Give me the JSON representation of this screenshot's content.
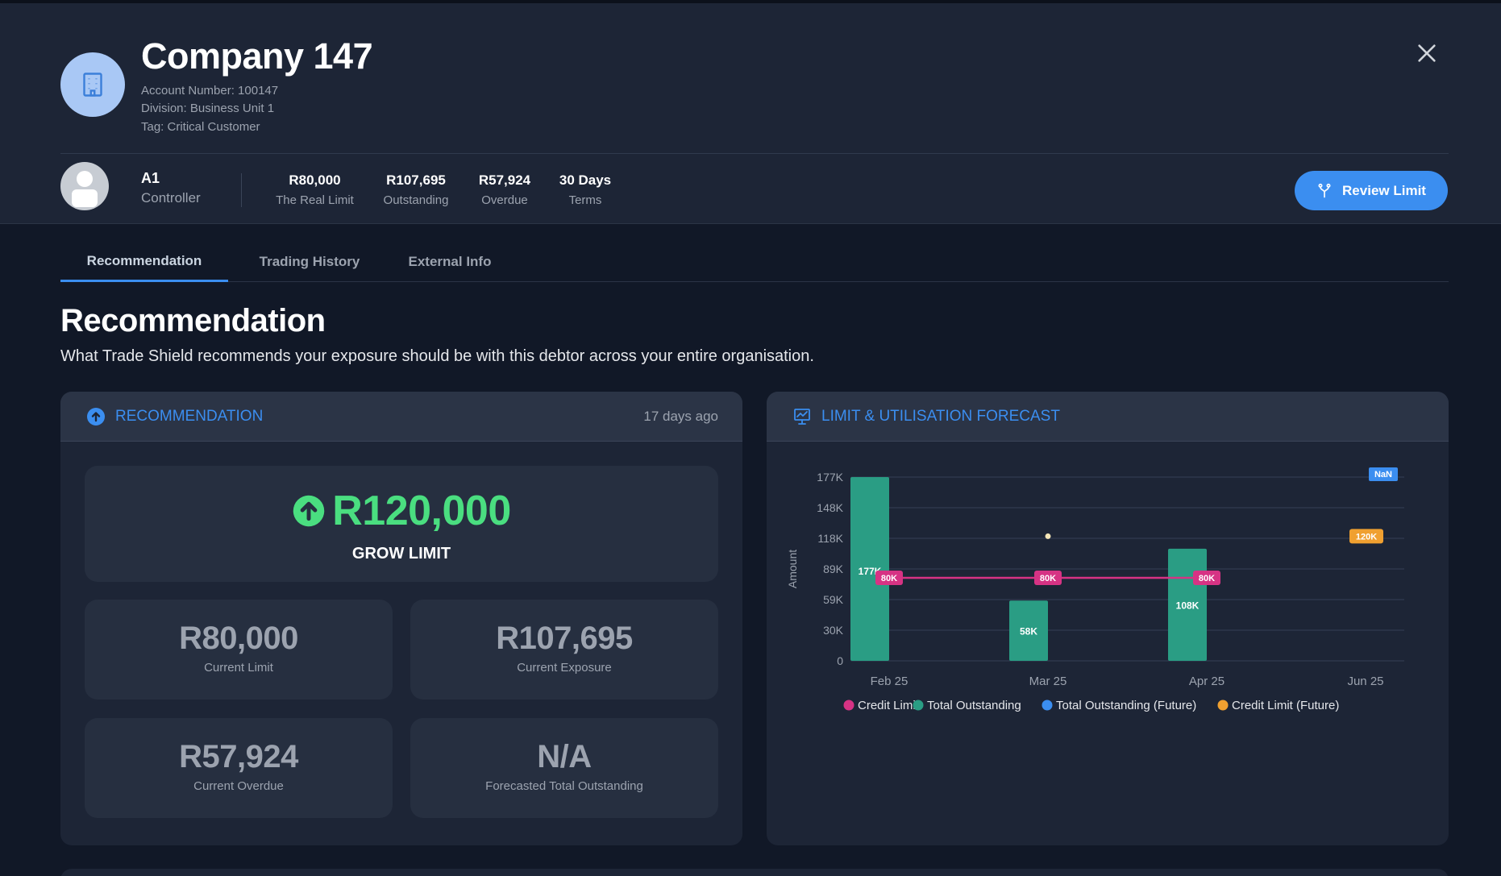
{
  "header": {
    "title": "Company 147",
    "account_number": "Account Number: 100147",
    "division": "Division: Business Unit 1",
    "tag": "Tag: Critical Customer",
    "icon": "building-icon"
  },
  "user": {
    "name": "A1",
    "role": "Controller"
  },
  "stats": [
    {
      "value": "R80,000",
      "label": "The Real Limit"
    },
    {
      "value": "R107,695",
      "label": "Outstanding"
    },
    {
      "value": "R57,924",
      "label": "Overdue"
    },
    {
      "value": "30 Days",
      "label": "Terms"
    }
  ],
  "actions": {
    "review_limit": "Review Limit"
  },
  "tabs": [
    {
      "label": "Recommendation",
      "active": true
    },
    {
      "label": "Trading History",
      "active": false
    },
    {
      "label": "External Info",
      "active": false
    }
  ],
  "section": {
    "title": "Recommendation",
    "subtitle": "What Trade Shield recommends your exposure should be with this debtor across your entire organisation."
  },
  "recommendation_card": {
    "title": "RECOMMENDATION",
    "time_ago": "17 days ago",
    "main_value": "R120,000",
    "main_label": "GROW LIMIT",
    "tiles": [
      {
        "value": "R80,000",
        "label": "Current Limit"
      },
      {
        "value": "R107,695",
        "label": "Current Exposure"
      },
      {
        "value": "R57,924",
        "label": "Current Overdue"
      },
      {
        "value": "N/A",
        "label": "Forecasted Total Outstanding"
      }
    ]
  },
  "forecast_card": {
    "title": "LIMIT & UTILISATION FORECAST"
  },
  "colors": {
    "accent": "#3b8ef0",
    "positive": "#4ade80",
    "credit_limit": "#d63384",
    "total_outstanding": "#2a9d84",
    "outstanding_future": "#3b8ef0",
    "limit_future": "#f0a030"
  },
  "chart_data": {
    "type": "bar",
    "title": "",
    "xlabel": "",
    "ylabel": "Amount",
    "categories": [
      "Feb 25",
      "Mar 25",
      "Apr 25",
      "Jun 25"
    ],
    "y_ticks": [
      "0",
      "30K",
      "59K",
      "89K",
      "118K",
      "148K",
      "177K"
    ],
    "ylim": [
      0,
      177000
    ],
    "grid": true,
    "legend_position": "bottom",
    "series": [
      {
        "name": "Credit Limit",
        "type": "line",
        "values": [
          80000,
          80000,
          80000,
          null
        ],
        "labels": [
          "80K",
          "80K",
          "80K",
          ""
        ]
      },
      {
        "name": "Total Outstanding",
        "type": "bar",
        "values": [
          177000,
          58000,
          108000,
          null
        ],
        "labels": [
          "177K",
          "58K",
          "108K",
          ""
        ]
      },
      {
        "name": "Total Outstanding (Future)",
        "type": "scatter",
        "values": [
          null,
          120000,
          null,
          null
        ],
        "labels": [
          "",
          "",
          "",
          "NaN"
        ]
      },
      {
        "name": "Credit Limit (Future)",
        "type": "scatter",
        "values": [
          null,
          null,
          null,
          120000
        ],
        "labels": [
          "",
          "",
          "",
          "120K"
        ]
      }
    ]
  }
}
